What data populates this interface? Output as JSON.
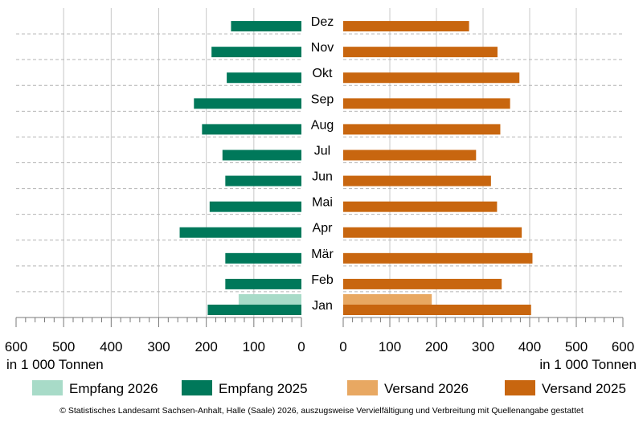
{
  "chart_data": {
    "type": "bar",
    "orientation": "horizontal-butterfly",
    "categories": [
      "Jan",
      "Feb",
      "Mär",
      "Apr",
      "Mai",
      "Jun",
      "Jul",
      "Aug",
      "Sep",
      "Okt",
      "Nov",
      "Dez"
    ],
    "left": {
      "xlim": [
        0,
        600
      ],
      "ticks": [
        600,
        500,
        400,
        300,
        200,
        100,
        0
      ],
      "unit_label": "in 1 000 Tonnen",
      "series": [
        {
          "name": "Empfang 2026",
          "color": "#a8dbc8",
          "values": [
            132,
            null,
            null,
            null,
            null,
            null,
            null,
            null,
            null,
            null,
            null,
            null
          ]
        },
        {
          "name": "Empfang 2025",
          "color": "#00785a",
          "values": [
            197,
            160,
            160,
            256,
            193,
            160,
            166,
            209,
            226,
            157,
            189,
            148
          ]
        }
      ]
    },
    "right": {
      "xlim": [
        0,
        600
      ],
      "ticks": [
        0,
        100,
        200,
        300,
        400,
        500,
        600
      ],
      "unit_label": "in 1 000 Tonnen",
      "series": [
        {
          "name": "Versand 2026",
          "color": "#e8a862",
          "values": [
            190,
            null,
            null,
            null,
            null,
            null,
            null,
            null,
            null,
            null,
            null,
            null
          ]
        },
        {
          "name": "Versand 2025",
          "color": "#c8660f",
          "values": [
            403,
            340,
            406,
            383,
            330,
            317,
            285,
            337,
            358,
            378,
            331,
            270
          ]
        }
      ]
    },
    "grid": true,
    "legend": "bottom"
  },
  "footer": "© Statistisches Landesamt Sachsen-Anhalt, Halle (Saale) 2026, auszugsweise Vervielfältigung und Verbreitung mit Quellenangabe gestattet"
}
